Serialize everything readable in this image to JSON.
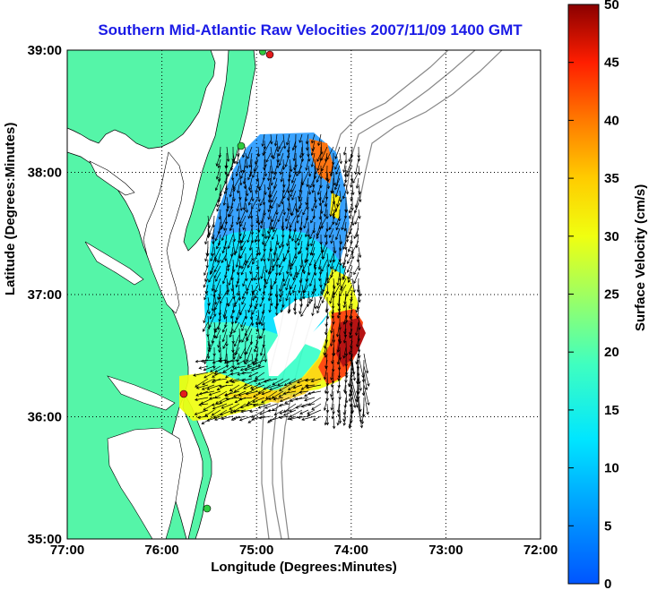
{
  "title": "Southern Mid-Atlantic Raw Velocities 2007/11/09 1400 GMT",
  "xlabel": "Longitude (Degrees:Minutes)",
  "ylabel": "Latitude (Degrees:Minutes)",
  "colorbar_label": "Surface Velocity (cm/s)",
  "x_ticks": [
    "77:00",
    "76:00",
    "75:00",
    "74:00",
    "73:00",
    "72:00"
  ],
  "y_ticks": [
    "39:00",
    "38:00",
    "37:00",
    "36:00",
    "35:00"
  ],
  "colorbar_ticks": [
    "50",
    "45",
    "40",
    "35",
    "30",
    "25",
    "20",
    "15",
    "10",
    "5",
    "0"
  ],
  "colors": {
    "land": "#55f5a8",
    "title": "#1a1ae6",
    "station": "#e31a1c",
    "station_alt": "#2ecc40"
  },
  "map": {
    "lon_range": [
      -77,
      -72
    ],
    "lat_range": [
      35,
      39
    ],
    "colorbar_range": [
      0,
      50
    ],
    "grid": true
  }
}
